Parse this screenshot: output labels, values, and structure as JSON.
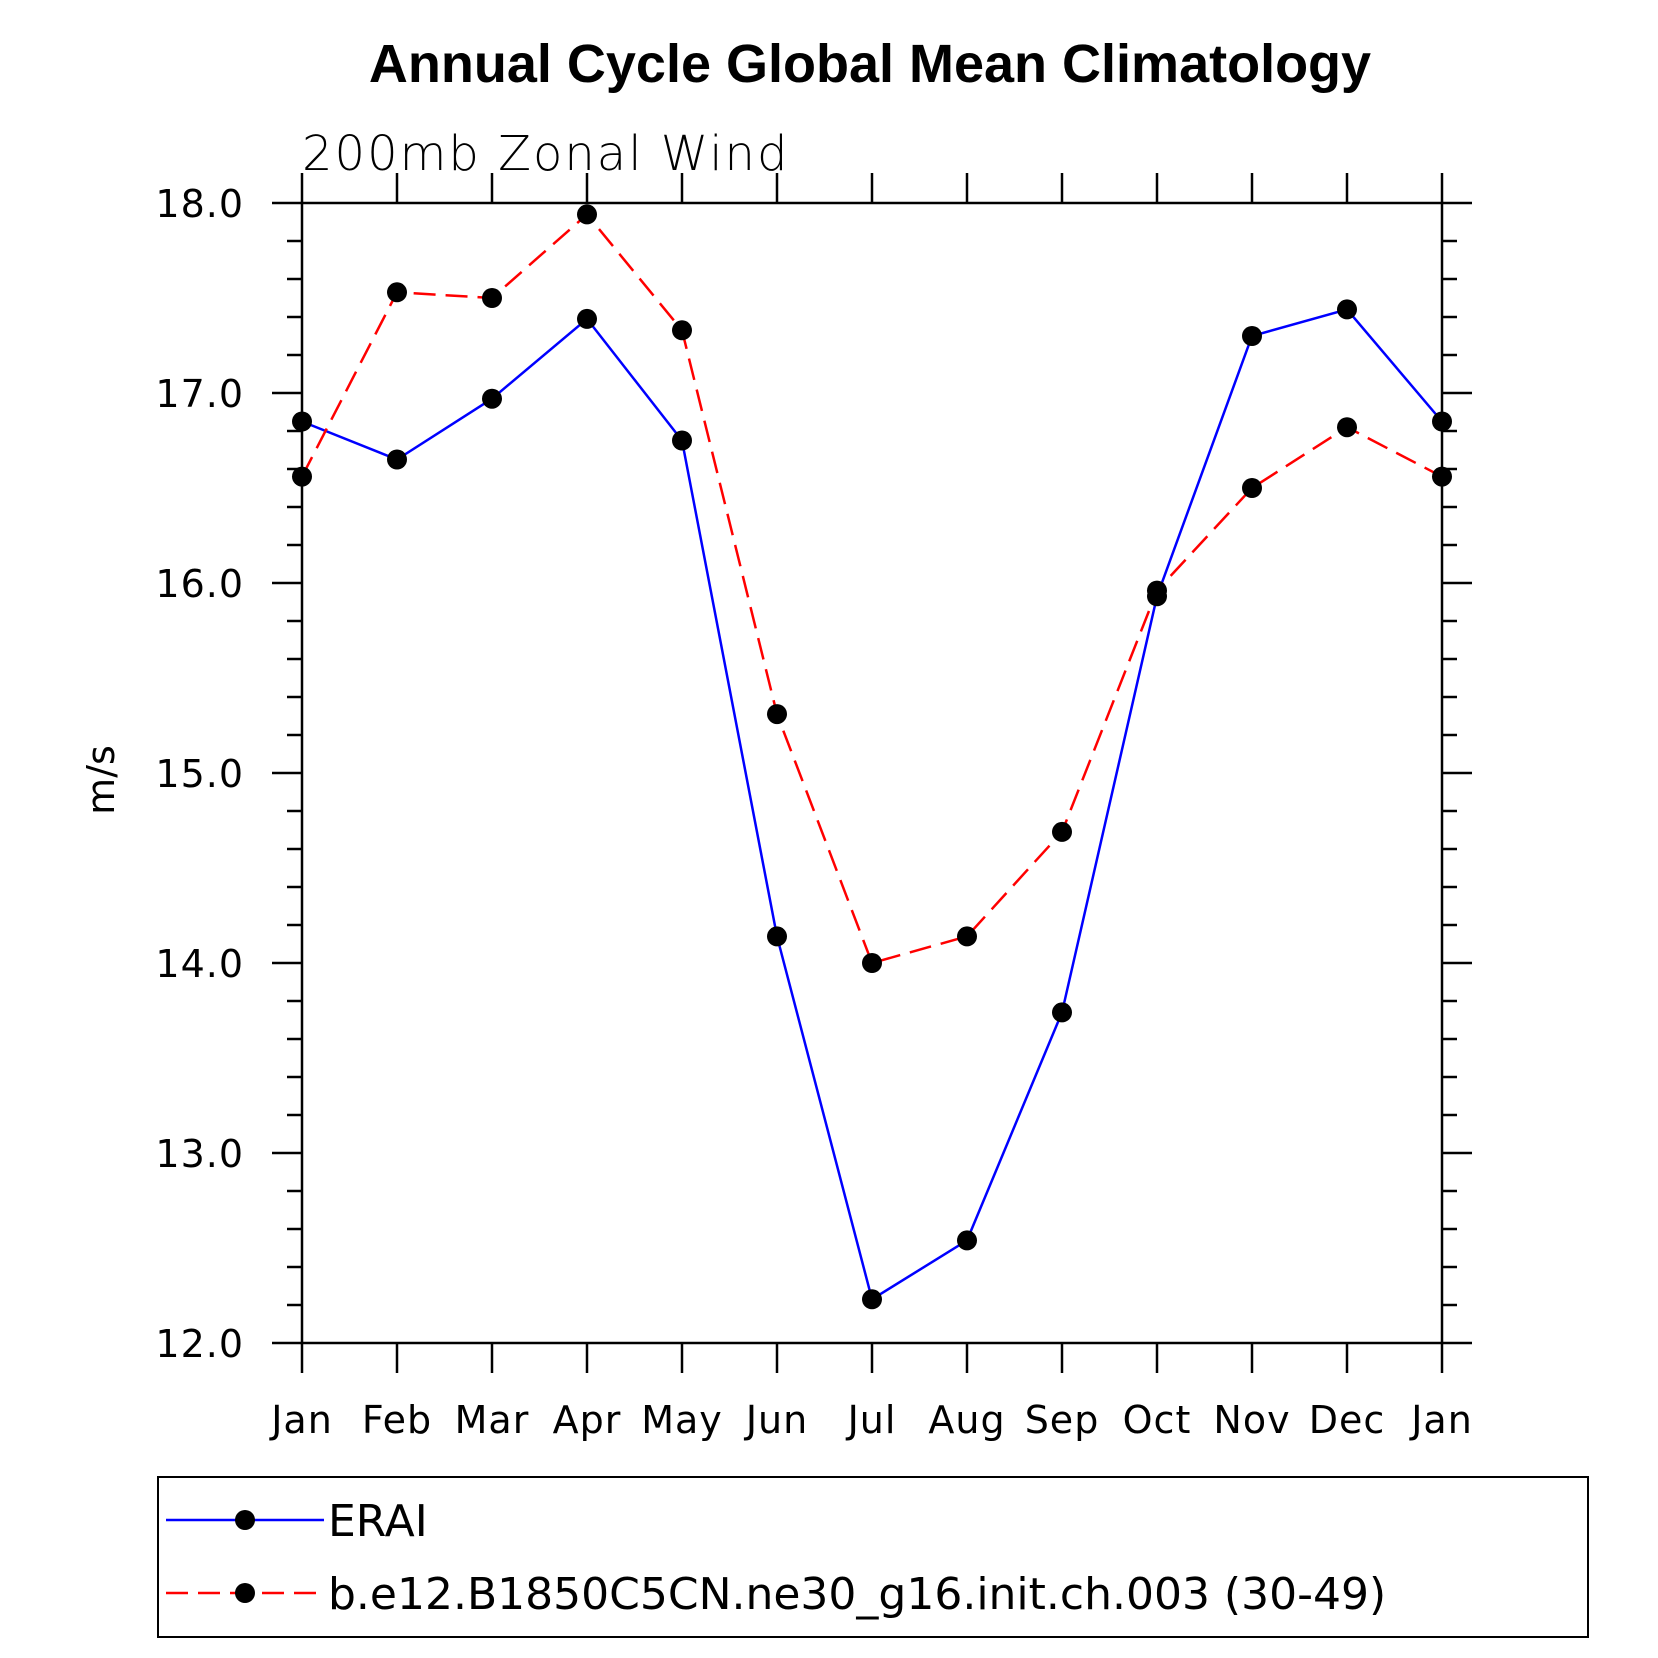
{
  "chart_data": {
    "type": "line",
    "title": "Annual Cycle Global Mean Climatology",
    "subtitle": "200mb Zonal Wind",
    "xlabel": "",
    "ylabel": "m/s",
    "ylim": [
      12.0,
      18.0
    ],
    "y_ticks": [
      "12.0",
      "13.0",
      "14.0",
      "15.0",
      "16.0",
      "17.0",
      "18.0"
    ],
    "categories": [
      "Jan",
      "Feb",
      "Mar",
      "Apr",
      "May",
      "Jun",
      "Jul",
      "Aug",
      "Sep",
      "Oct",
      "Nov",
      "Dec",
      "Jan"
    ],
    "series": [
      {
        "name": "ERAI",
        "color": "#0000ff",
        "dash": "solid",
        "values": [
          16.85,
          16.65,
          16.97,
          17.39,
          16.75,
          14.14,
          12.23,
          12.54,
          13.74,
          15.93,
          17.3,
          17.44,
          16.85
        ]
      },
      {
        "name": "b.e12.B1850C5CN.ne30_g16.init.ch.003 (30-49)",
        "color": "#ff0000",
        "dash": "dashed",
        "values": [
          16.56,
          17.53,
          17.5,
          17.94,
          17.33,
          15.31,
          14.0,
          14.14,
          14.69,
          15.96,
          16.5,
          16.82,
          16.56
        ]
      }
    ],
    "legend_position": "bottom"
  }
}
